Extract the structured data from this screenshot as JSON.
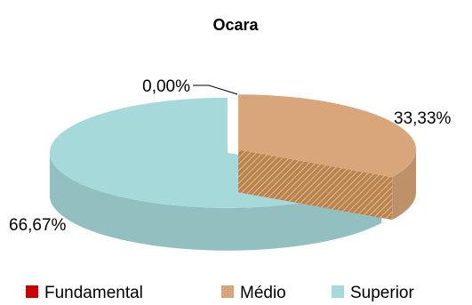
{
  "chart_data": {
    "type": "pie",
    "title": "Ocara",
    "categories": [
      "Fundamental",
      "Médio",
      "Superior"
    ],
    "values": [
      0.0,
      33.33,
      66.67
    ],
    "labels": [
      "0,00%",
      "33,33%",
      "66,67%"
    ],
    "colors": [
      "#cc0000",
      "#d9a57a",
      "#a6dada"
    ],
    "legend_position": "bottom",
    "style": "3d-exploded"
  }
}
